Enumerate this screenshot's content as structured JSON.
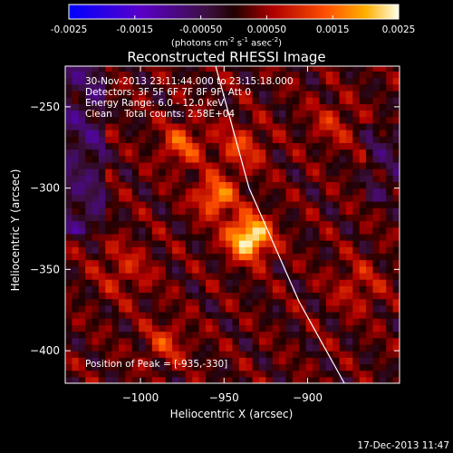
{
  "chart_data": {
    "type": "heatmap",
    "title": "Reconstructed RHESSI Image",
    "xlabel": "Heliocentric X (arcsec)",
    "ylabel": "Heliocentric Y (arcsec)",
    "xlim": [
      -1045,
      -845
    ],
    "ylim": [
      -420,
      -225
    ],
    "x_ticks": [
      -1000,
      -950,
      -900
    ],
    "y_ticks": [
      -250,
      -300,
      -350,
      -400
    ],
    "colorbar": {
      "min": -0.0025,
      "max": 0.0025,
      "ticks": [
        "-0.0025",
        "-0.0015",
        "-0.00050",
        "0.00050",
        "0.0015",
        "0.0025"
      ],
      "tick_values": [
        -0.0025,
        -0.0015,
        -0.0005,
        0.0005,
        0.0015,
        0.0025
      ],
      "units_main": "(photons cm",
      "units_exp1": "-2",
      "units_mid1": " s",
      "units_exp2": "-1",
      "units_mid2": " asec",
      "units_exp3": "-2",
      "units_end": ")"
    },
    "sources": [
      {
        "x": -935,
        "y": -330,
        "peak": 0.0025,
        "sigma": 9
      },
      {
        "x": -955,
        "y": -305,
        "peak": 0.0016,
        "sigma": 8
      },
      {
        "x": -975,
        "y": -273,
        "peak": 0.0011,
        "sigma": 9
      },
      {
        "x": -940,
        "y": -275,
        "peak": 0.0009,
        "sigma": 10
      },
      {
        "x": -985,
        "y": -395,
        "peak": 0.0008,
        "sigma": 9
      },
      {
        "x": -1010,
        "y": -350,
        "peak": 0.0006,
        "sigma": 12
      },
      {
        "x": -870,
        "y": -360,
        "peak": 0.0006,
        "sigma": 11
      },
      {
        "x": -885,
        "y": -260,
        "peak": 0.0006,
        "sigma": 10
      }
    ],
    "limb_points": [
      [
        -955,
        -225
      ],
      [
        -935,
        -300
      ],
      [
        -905,
        -370
      ],
      [
        -878,
        -420
      ]
    ],
    "annotations": [
      "30-Nov-2013 23:11:44.000 to 23:15:18.000",
      "Detectors: 3F 5F 6F 7F 8F 9F, Att 0",
      "Energy Range: 6.0 - 12.0 keV",
      "Clean    Total counts: 2.58E+04"
    ],
    "peak_label": "Position of Peak = [-935,-330]"
  },
  "footer_date": "17-Dec-2013 11:47"
}
